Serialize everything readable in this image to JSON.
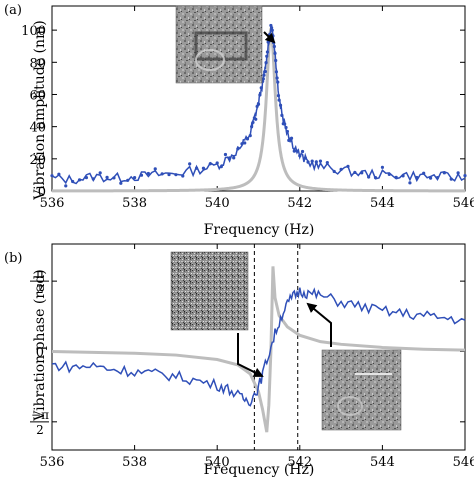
{
  "chart_data": [
    {
      "panel": "(a)",
      "type": "line",
      "xlabel": "Frequency (Hz)",
      "ylabel": "Vibration amplitude (nm)",
      "xlim": [
        536,
        546
      ],
      "ylim": [
        0,
        115
      ],
      "xticks": [
        536,
        538,
        540,
        542,
        544,
        546
      ],
      "yticks": [
        0,
        20,
        40,
        60,
        80,
        100
      ],
      "grid": false,
      "colors": {
        "measured": "#2f4fb8",
        "model": "#bdbdbd"
      },
      "inset": {
        "type": "image",
        "content": "gray noisy micrograph",
        "arrow_to_x": 541.2
      },
      "series": [
        {
          "style": "gray line",
          "resonance_freq": 541.3,
          "peak_amplitude": 101,
          "half_width": 0.13,
          "x": [
            536.0,
            537.0,
            538.0,
            539.0,
            539.5,
            540.0,
            540.3,
            540.6,
            540.8,
            540.95,
            541.05,
            541.15,
            541.22,
            541.28,
            541.33,
            541.38,
            541.45,
            541.55,
            541.7,
            541.9,
            542.2,
            542.6,
            543.0,
            544.0,
            545.0,
            546.0
          ],
          "y": [
            0.2,
            0.4,
            0.6,
            1.0,
            1.4,
            2.2,
            3.2,
            5.4,
            8.9,
            12.2,
            24.0,
            50.0,
            75.0,
            96.0,
            100.0,
            90.0,
            60.0,
            34.0,
            17.0,
            8.5,
            4.2,
            2.3,
            1.5,
            0.8,
            0.5,
            0.3
          ]
        },
        {
          "style": "blue line with dots",
          "x": [
            536.0,
            536.5,
            537.0,
            537.5,
            538.0,
            538.5,
            539.0,
            539.5,
            540.0,
            540.3,
            540.6,
            540.8,
            540.9,
            541.0,
            541.1,
            541.15,
            541.2,
            541.25,
            541.3,
            541.35,
            541.4,
            541.45,
            541.5,
            541.6,
            541.7,
            541.8,
            542.0,
            542.2,
            542.5,
            543.0,
            543.5,
            544.0,
            544.5,
            545.0,
            545.5,
            546.0
          ],
          "y": [
            8,
            7,
            9,
            8,
            9,
            10,
            11,
            13,
            16,
            21,
            28,
            36,
            45,
            55,
            67,
            75,
            83,
            92,
            100,
            99,
            86,
            70,
            58,
            45,
            37,
            31,
            22,
            18,
            15,
            13,
            11,
            10,
            10,
            9,
            9,
            8
          ]
        }
      ]
    },
    {
      "panel": "(b)",
      "type": "line",
      "xlabel": "Frequency (Hz)",
      "ylabel": "Vibration phase (rad)",
      "xlim": [
        536,
        546
      ],
      "ylim": [
        -2.2,
        2.4
      ],
      "xticks": [
        536,
        538,
        540,
        542,
        544,
        546
      ],
      "yticks": [
        -1.5708,
        0,
        1.5708
      ],
      "ytick_labels": [
        {
          "num": "−π",
          "den": "2"
        },
        {
          "num": "0",
          "den": ""
        },
        {
          "num": "π",
          "den": "2"
        }
      ],
      "grid": false,
      "colors": {
        "measured": "#2f4fb8",
        "model": "#bdbdbd"
      },
      "vlines": [
        540.9,
        541.95
      ],
      "insets": [
        {
          "type": "image",
          "content": "gray noise pattern",
          "arrow_to_x": 540.9
        },
        {
          "type": "image",
          "content": "gray micrograph with feature",
          "arrow_to_x": 541.95
        }
      ],
      "series": [
        {
          "style": "gray line",
          "x": [
            536.0,
            538.0,
            539.0,
            540.0,
            540.5,
            540.8,
            541.0,
            541.1,
            541.2,
            541.25,
            541.3,
            541.35,
            541.4,
            541.5,
            541.7,
            542.0,
            542.5,
            543.0,
            544.0,
            545.0,
            546.0
          ],
          "y": [
            0.0,
            -0.04,
            -0.08,
            -0.18,
            -0.3,
            -0.5,
            -0.9,
            -1.3,
            -1.8,
            -1.2,
            0.0,
            1.9,
            1.2,
            0.8,
            0.55,
            0.36,
            0.22,
            0.16,
            0.09,
            0.05,
            0.03
          ]
        },
        {
          "style": "blue line",
          "x": [
            536.0,
            536.5,
            537.0,
            537.5,
            538.0,
            538.5,
            539.0,
            539.5,
            540.0,
            540.3,
            540.6,
            540.8,
            541.0,
            541.2,
            541.4,
            541.6,
            541.8,
            542.0,
            542.2,
            542.5,
            543.0,
            543.5,
            544.0,
            544.5,
            545.0,
            545.5,
            546.0
          ],
          "y": [
            -0.3,
            -0.35,
            -0.32,
            -0.4,
            -0.45,
            -0.5,
            -0.55,
            -0.65,
            -0.75,
            -0.85,
            -1.05,
            -1.1,
            -0.8,
            -0.2,
            0.4,
            0.9,
            1.2,
            1.35,
            1.3,
            1.25,
            1.1,
            1.0,
            0.9,
            0.85,
            0.8,
            0.75,
            0.7
          ]
        }
      ]
    }
  ]
}
